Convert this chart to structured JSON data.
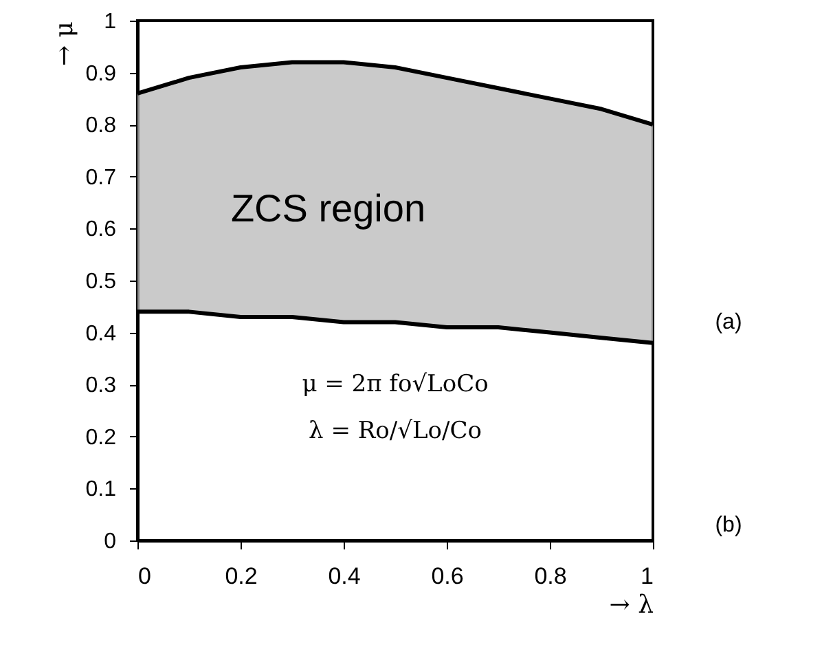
{
  "chart_data": {
    "type": "line",
    "xlabel": "→ λ",
    "ylabel": "→ μ",
    "x": [
      0,
      0.1,
      0.2,
      0.3,
      0.4,
      0.5,
      0.6,
      0.7,
      0.8,
      0.9,
      1
    ],
    "series": [
      {
        "color": "#000000",
        "values": [
          0.86,
          0.89,
          0.91,
          0.92,
          0.92,
          0.91,
          0.89,
          0.87,
          0.85,
          0.83,
          0.8
        ],
        "lower": [
          0.44,
          0.44,
          0.43,
          0.43,
          0.42,
          0.42,
          0.41,
          0.41,
          0.4,
          0.39,
          0.38
        ],
        "upper": [
          0.86,
          0.89,
          0.91,
          0.92,
          0.92,
          0.91,
          0.89,
          0.87,
          0.85,
          0.83,
          0.8
        ]
      },
      {
        "color": "#000000",
        "values": [
          0.44,
          0.44,
          0.43,
          0.43,
          0.42,
          0.42,
          0.41,
          0.41,
          0.4,
          0.39,
          0.38
        ]
      }
    ],
    "xlim": [
      0,
      1
    ],
    "xticks": [
      0,
      0.2,
      0.4,
      0.6,
      0.8,
      1
    ],
    "ylim": [
      0,
      1
    ],
    "yticks": [
      0,
      0.1,
      0.2,
      0.3,
      0.4,
      0.5,
      0.6,
      0.7,
      0.8,
      0.9,
      1
    ],
    "grid": false,
    "marker": "none",
    "line_style": "solid",
    "annotations": [
      "ZCS region",
      "μ = 2π fo√LoCo",
      "λ = Ro/√Lo/Co",
      "(a)",
      "(b)"
    ]
  }
}
